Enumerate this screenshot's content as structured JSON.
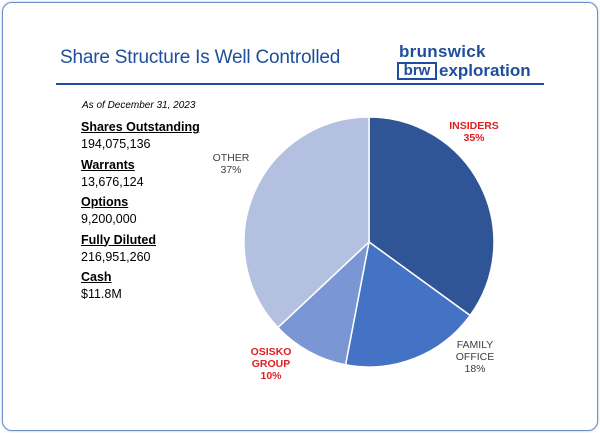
{
  "title": "Share Structure Is Well Controlled",
  "logo": {
    "top": "brunswick",
    "box": "brw",
    "rest": "exploration"
  },
  "as_of": "As of December 31, 2023",
  "stats": [
    {
      "label": "Shares Outstanding",
      "value": "194,075,136"
    },
    {
      "label": "Warrants",
      "value": "13,676,124"
    },
    {
      "label": "Options",
      "value": "9,200,000"
    },
    {
      "label": "Fully Diluted",
      "value": "216,951,260"
    },
    {
      "label": "Cash",
      "value": "$11.8M"
    }
  ],
  "chart_data": {
    "type": "pie",
    "title": "",
    "slices": [
      {
        "label": "INSIDERS",
        "value": 35,
        "value_label": "35%",
        "color": "#2f5597",
        "label_color": "#e02020",
        "bold": true
      },
      {
        "label": "FAMILY OFFICE",
        "label_lines": [
          "FAMILY",
          "OFFICE"
        ],
        "value": 18,
        "value_label": "18%",
        "color": "#4472c4",
        "label_color": "#404040",
        "bold": false
      },
      {
        "label": "OSISKO GROUP",
        "label_lines": [
          "OSISKO",
          "GROUP"
        ],
        "value": 10,
        "value_label": "10%",
        "color": "#7a96d4",
        "label_color": "#e02020",
        "bold": true
      },
      {
        "label": "OTHER",
        "value": 37,
        "value_label": "37%",
        "color": "#b4c0e0",
        "label_color": "#404040",
        "bold": false
      }
    ]
  }
}
